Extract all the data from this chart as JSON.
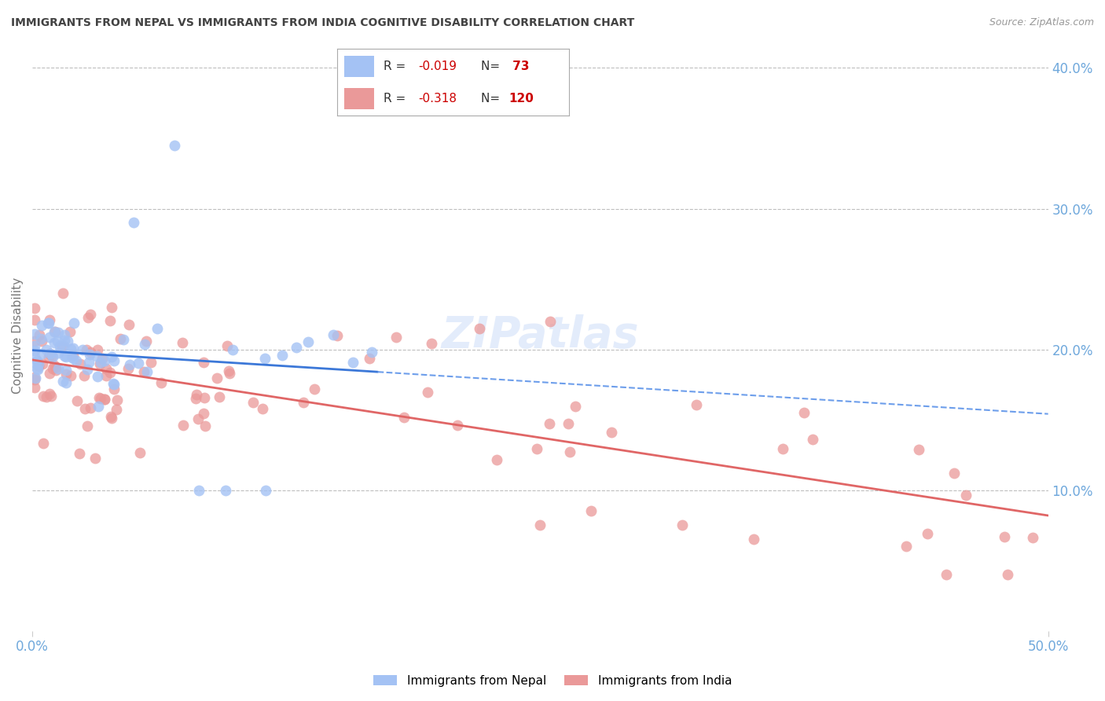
{
  "title": "IMMIGRANTS FROM NEPAL VS IMMIGRANTS FROM INDIA COGNITIVE DISABILITY CORRELATION CHART",
  "source": "Source: ZipAtlas.com",
  "ylabel": "Cognitive Disability",
  "right_yticks": [
    "40.0%",
    "30.0%",
    "20.0%",
    "10.0%"
  ],
  "right_ytick_vals": [
    0.4,
    0.3,
    0.2,
    0.1
  ],
  "xlim": [
    0.0,
    0.5
  ],
  "ylim": [
    0.0,
    0.42
  ],
  "nepal_R": "-0.019",
  "nepal_N": "73",
  "india_R": "-0.318",
  "india_N": "120",
  "nepal_color": "#a4c2f4",
  "india_color": "#ea9999",
  "nepal_trend_color": "#3c78d8",
  "india_trend_color": "#e06666",
  "nepal_dashed_color": "#6d9eeb",
  "background_color": "#ffffff",
  "grid_color": "#b7b7b7",
  "axis_label_color": "#6fa8dc",
  "title_color": "#434343",
  "source_color": "#999999"
}
